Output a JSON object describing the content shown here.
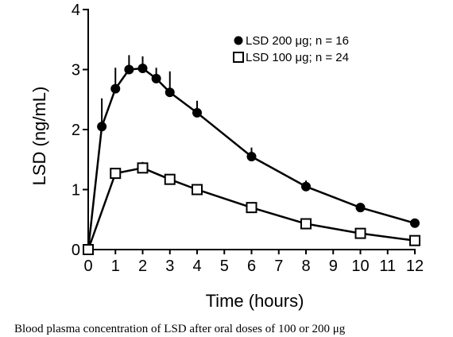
{
  "chart_data": {
    "type": "line",
    "title": "",
    "xlabel": "Time (hours)",
    "ylabel": "LSD (ng/mL)",
    "xlim": [
      0,
      12
    ],
    "ylim": [
      0,
      4
    ],
    "xticks": [
      "0",
      "1",
      "2",
      "3",
      "4",
      "5",
      "6",
      "7",
      "8",
      "9",
      "10",
      "11",
      "12"
    ],
    "yticks": [
      "0",
      "1",
      "2",
      "3",
      "4"
    ],
    "grid": false,
    "legend_placement": "top-right",
    "series": [
      {
        "name": "LSD 200 μg; n = 16",
        "marker": "filled-circle",
        "color": "#000000",
        "x": [
          0,
          0.5,
          1,
          1.5,
          2,
          2.5,
          3,
          4,
          6,
          8,
          10,
          12
        ],
        "y": [
          0,
          2.05,
          2.68,
          3.0,
          3.02,
          2.85,
          2.62,
          2.28,
          1.55,
          1.05,
          0.7,
          0.44
        ],
        "error_upper": [
          0,
          0.47,
          0.35,
          0.24,
          0.2,
          0.18,
          0.35,
          0.2,
          0.15,
          0.1,
          0.07,
          0.05
        ]
      },
      {
        "name": "LSD 100 μg; n = 24",
        "marker": "open-square",
        "color": "#000000",
        "x": [
          0,
          1,
          2,
          3,
          4,
          6,
          8,
          10,
          12
        ],
        "y": [
          0,
          1.27,
          1.36,
          1.17,
          1.0,
          0.7,
          0.43,
          0.27,
          0.15
        ],
        "error_upper": [
          0,
          0.07,
          0.1,
          0.07,
          0.07,
          0.04,
          0.04,
          0.03,
          0.02
        ]
      }
    ]
  },
  "caption": "Blood plasma concentration of LSD after oral doses of 100 or 200 μg"
}
